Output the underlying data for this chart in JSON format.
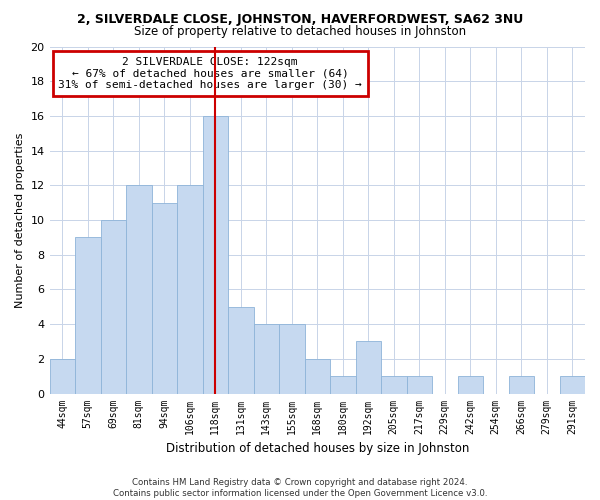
{
  "title": "2, SILVERDALE CLOSE, JOHNSTON, HAVERFORDWEST, SA62 3NU",
  "subtitle": "Size of property relative to detached houses in Johnston",
  "xlabel": "Distribution of detached houses by size in Johnston",
  "ylabel": "Number of detached properties",
  "bin_labels": [
    "44sqm",
    "57sqm",
    "69sqm",
    "81sqm",
    "94sqm",
    "106sqm",
    "118sqm",
    "131sqm",
    "143sqm",
    "155sqm",
    "168sqm",
    "180sqm",
    "192sqm",
    "205sqm",
    "217sqm",
    "229sqm",
    "242sqm",
    "254sqm",
    "266sqm",
    "279sqm",
    "291sqm"
  ],
  "bar_heights": [
    2,
    9,
    10,
    12,
    11,
    12,
    16,
    5,
    4,
    4,
    2,
    1,
    3,
    1,
    1,
    0,
    1,
    0,
    1,
    0,
    1
  ],
  "bar_color": "#c6d9f0",
  "bar_edge_color": "#8eb4d8",
  "vline_x": 6.0,
  "vline_color": "#cc0000",
  "ylim": [
    0,
    20
  ],
  "yticks": [
    0,
    2,
    4,
    6,
    8,
    10,
    12,
    14,
    16,
    18,
    20
  ],
  "annotation_title": "2 SILVERDALE CLOSE: 122sqm",
  "annotation_line1": "← 67% of detached houses are smaller (64)",
  "annotation_line2": "31% of semi-detached houses are larger (30) →",
  "annotation_box_color": "#ffffff",
  "annotation_box_edge": "#cc0000",
  "footer_line1": "Contains HM Land Registry data © Crown copyright and database right 2024.",
  "footer_line2": "Contains public sector information licensed under the Open Government Licence v3.0.",
  "background_color": "#ffffff",
  "grid_color": "#c8d4e8"
}
